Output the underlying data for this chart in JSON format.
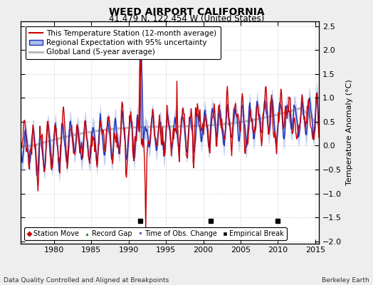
{
  "title": "WEED AIRPORT CALIFORNIA",
  "subtitle": "41.479 N, 122.454 W (United States)",
  "ylabel": "Temperature Anomaly (°C)",
  "footer_left": "Data Quality Controlled and Aligned at Breakpoints",
  "footer_right": "Berkeley Earth",
  "xlim": [
    1975.5,
    2015.5
  ],
  "ylim": [
    -2.05,
    2.6
  ],
  "yticks": [
    -2,
    -1.5,
    -1,
    -0.5,
    0,
    0.5,
    1,
    1.5,
    2,
    2.5
  ],
  "xticks": [
    1980,
    1985,
    1990,
    1995,
    2000,
    2005,
    2010,
    2015
  ],
  "empirical_breaks": [
    1991.5,
    2001.0,
    2010.0
  ],
  "seed": 12345,
  "color_station": "#cc0000",
  "color_regional": "#2233bb",
  "color_regional_fill": "#aabbee",
  "color_global": "#bbbbbb",
  "color_bg": "#eeeeee",
  "color_plot_bg": "#ffffff",
  "legend_fontsize": 7.5,
  "title_fontsize": 10,
  "subtitle_fontsize": 8.5
}
